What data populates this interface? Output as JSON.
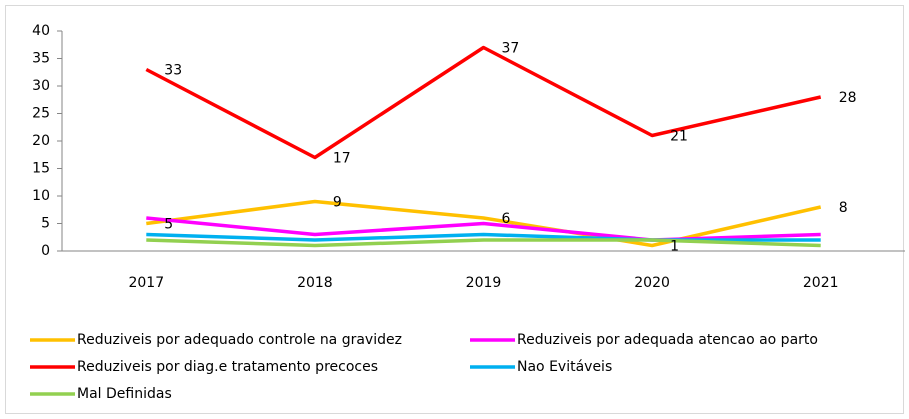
{
  "chart_data": {
    "type": "line",
    "categories": [
      "2017",
      "2018",
      "2019",
      "2020",
      "2021"
    ],
    "ylim": [
      0,
      40
    ],
    "yticks": [
      0,
      5,
      10,
      15,
      20,
      25,
      30,
      35,
      40
    ],
    "series": [
      {
        "name": "Reduziveis por adequado controle na gravidez",
        "color": "#ffc000",
        "values": [
          5,
          9,
          6,
          1,
          8
        ],
        "data_labels": true
      },
      {
        "name": "Reduziveis por adequada atencao ao parto",
        "color": "#ff00ff",
        "values": [
          6,
          3,
          5,
          2,
          3
        ]
      },
      {
        "name": "Reduziveis por diag.e tratamento precoces",
        "color": "#ff0000",
        "values": [
          33,
          17,
          37,
          21,
          28
        ],
        "data_labels": true
      },
      {
        "name": "Nao Evitáveis",
        "color": "#00b0f0",
        "values": [
          3,
          2,
          3,
          2,
          2
        ]
      },
      {
        "name": "Mal Definidas",
        "color": "#92d050",
        "values": [
          2,
          1,
          2,
          2,
          1
        ]
      }
    ]
  }
}
